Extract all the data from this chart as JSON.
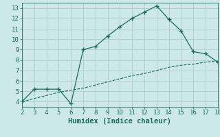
{
  "xlabel": "Humidex (Indice chaleur)",
  "line1_x": [
    2,
    3,
    4,
    5,
    6,
    7,
    8,
    9,
    10,
    11,
    12,
    13,
    14,
    15,
    16,
    17,
    18
  ],
  "line1_y": [
    4.0,
    5.2,
    5.2,
    5.2,
    3.8,
    9.0,
    9.3,
    10.3,
    11.2,
    12.0,
    12.6,
    13.2,
    11.9,
    10.8,
    8.8,
    8.6,
    7.8
  ],
  "line2_x": [
    2,
    3,
    4,
    5,
    6,
    7,
    8,
    9,
    10,
    11,
    12,
    13,
    14,
    15,
    16,
    17,
    18
  ],
  "line2_y": [
    4.0,
    4.3,
    4.6,
    4.9,
    5.1,
    5.3,
    5.6,
    5.9,
    6.2,
    6.5,
    6.7,
    7.0,
    7.3,
    7.5,
    7.6,
    7.8,
    7.9
  ],
  "line_color": "#1a6b5a",
  "background_color": "#cce8e8",
  "grid_color": "#b0cccc",
  "xlim": [
    2,
    18
  ],
  "ylim": [
    3.5,
    13.5
  ],
  "xticks": [
    2,
    3,
    4,
    5,
    6,
    7,
    8,
    9,
    10,
    11,
    12,
    13,
    14,
    15,
    16,
    17,
    18
  ],
  "yticks": [
    4,
    5,
    6,
    7,
    8,
    9,
    10,
    11,
    12,
    13
  ],
  "tick_fontsize": 6.5,
  "xlabel_fontsize": 7.5
}
